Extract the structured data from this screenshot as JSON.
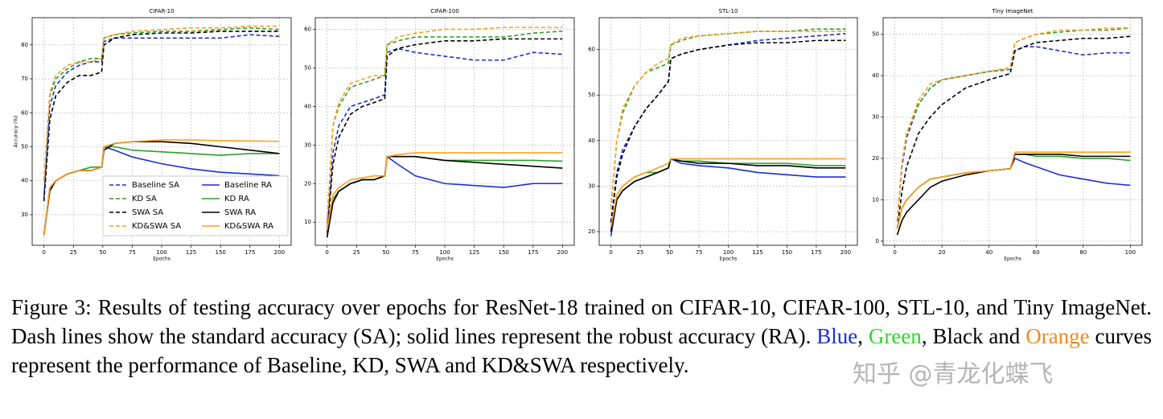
{
  "chart_data": [
    {
      "type": "line",
      "title": "CIFAR-10",
      "xlabel": "Epochs",
      "ylabel": "Accuracy (%)",
      "x": [
        0,
        5,
        10,
        20,
        30,
        40,
        49,
        51,
        60,
        75,
        100,
        125,
        150,
        175,
        200
      ],
      "xlim": [
        -10,
        210
      ],
      "xticks": [
        0,
        25,
        50,
        75,
        100,
        125,
        150,
        175,
        200
      ],
      "ylim": [
        21,
        88
      ],
      "yticks": [
        30,
        40,
        50,
        60,
        70,
        80
      ],
      "grid": true,
      "legend": "lower right",
      "series": [
        {
          "name": "Baseline SA",
          "color": "#1a2fd0",
          "linestyle": "dashed",
          "values": [
            35,
            62,
            68,
            72,
            74,
            75,
            75,
            81,
            82,
            82,
            82,
            82,
            82,
            83,
            82.5
          ]
        },
        {
          "name": "KD SA",
          "color": "#2ca02c",
          "linestyle": "dashed",
          "values": [
            40,
            65,
            70,
            73,
            75,
            76,
            76,
            82,
            83,
            83.5,
            84,
            84,
            84.5,
            85,
            84.5
          ]
        },
        {
          "name": "SWA SA",
          "color": "#000000",
          "linestyle": "dashed",
          "values": [
            34,
            58,
            65,
            69,
            71,
            71,
            72,
            80,
            82,
            83,
            83.5,
            83.5,
            84,
            84,
            84
          ]
        },
        {
          "name": "KD&SWA SA",
          "color": "#ff9f1a",
          "linestyle": "dashed",
          "values": [
            40,
            66,
            71,
            74,
            75,
            75,
            76,
            82,
            83,
            84,
            84.5,
            85,
            85,
            85.5,
            85.5
          ]
        },
        {
          "name": "Baseline RA",
          "color": "#1a2fd0",
          "linestyle": "solid",
          "values": [
            24,
            38,
            40,
            42,
            43,
            43,
            44,
            50,
            49,
            47,
            45,
            43.5,
            42.5,
            42,
            41.5
          ]
        },
        {
          "name": "KD RA",
          "color": "#2ca02c",
          "linestyle": "solid",
          "values": [
            24,
            38,
            40,
            42,
            43,
            44,
            44,
            50,
            50,
            49,
            48.5,
            48,
            47.5,
            48,
            48
          ]
        },
        {
          "name": "SWA RA",
          "color": "#000000",
          "linestyle": "solid",
          "values": [
            24,
            37,
            40,
            42,
            43,
            43,
            44,
            49,
            51,
            51.5,
            51.5,
            51,
            50,
            49,
            48
          ]
        },
        {
          "name": "KD&SWA RA",
          "color": "#ff9f1a",
          "linestyle": "solid",
          "values": [
            24,
            38,
            40,
            42,
            43,
            43,
            44,
            50,
            51,
            51.5,
            52,
            52,
            51.8,
            51.7,
            51.6
          ]
        }
      ]
    },
    {
      "type": "line",
      "title": "CIFAR-100",
      "xlabel": "Epochs",
      "x": [
        0,
        5,
        10,
        20,
        30,
        40,
        49,
        51,
        60,
        75,
        100,
        125,
        150,
        175,
        200
      ],
      "xlim": [
        -10,
        210
      ],
      "xticks": [
        0,
        25,
        50,
        75,
        100,
        125,
        150,
        175,
        200
      ],
      "ylim": [
        4,
        63
      ],
      "yticks": [
        10,
        20,
        30,
        40,
        50,
        60
      ],
      "grid": true,
      "series": [
        {
          "name": "Baseline SA",
          "color": "#1a2fd0",
          "linestyle": "dashed",
          "values": [
            8,
            28,
            35,
            40,
            41,
            42,
            43,
            54,
            55,
            54,
            53,
            52,
            52,
            54,
            53.5
          ]
        },
        {
          "name": "KD SA",
          "color": "#2ca02c",
          "linestyle": "dashed",
          "values": [
            10,
            35,
            40,
            45,
            46,
            47,
            48,
            56,
            57,
            58,
            58,
            58,
            58,
            59,
            59.5
          ]
        },
        {
          "name": "SWA SA",
          "color": "#000000",
          "linestyle": "dashed",
          "values": [
            7,
            25,
            32,
            38,
            40,
            41,
            42,
            53,
            55,
            56,
            57,
            57,
            57.5,
            57.5,
            57.5
          ]
        },
        {
          "name": "KD&SWA SA",
          "color": "#ff9f1a",
          "linestyle": "dashed",
          "values": [
            10,
            35,
            41,
            46,
            47,
            48,
            48,
            56,
            58,
            59,
            60,
            60,
            60.5,
            60.5,
            60.5
          ]
        },
        {
          "name": "Baseline RA",
          "color": "#1a2fd0",
          "linestyle": "solid",
          "values": [
            7,
            16,
            18,
            20,
            21,
            21,
            22,
            27,
            25,
            22,
            20,
            19.5,
            19,
            20,
            20
          ]
        },
        {
          "name": "KD RA",
          "color": "#2ca02c",
          "linestyle": "solid",
          "values": [
            7,
            16,
            18,
            20,
            21,
            21,
            22,
            27,
            27,
            27,
            26,
            26,
            26,
            26,
            25.8
          ]
        },
        {
          "name": "SWA RA",
          "color": "#000000",
          "linestyle": "solid",
          "values": [
            6,
            15,
            18,
            20,
            21,
            21,
            22,
            27,
            27,
            27,
            26,
            25.5,
            25,
            24.5,
            24
          ]
        },
        {
          "name": "KD&SWA RA",
          "color": "#ff9f1a",
          "linestyle": "solid",
          "values": [
            8,
            17,
            19,
            21,
            21.5,
            22,
            22,
            27,
            27.5,
            28,
            28,
            28,
            28,
            28,
            28
          ]
        }
      ]
    },
    {
      "type": "line",
      "title": "STL-10",
      "xlabel": "Epochs",
      "x": [
        0,
        5,
        10,
        20,
        30,
        40,
        49,
        51,
        60,
        75,
        100,
        125,
        150,
        175,
        200
      ],
      "xlim": [
        -10,
        210
      ],
      "xticks": [
        0,
        25,
        50,
        75,
        100,
        125,
        150,
        175,
        200
      ],
      "ylim": [
        17,
        67
      ],
      "yticks": [
        20,
        30,
        40,
        50,
        60
      ],
      "grid": true,
      "series": [
        {
          "name": "Baseline SA",
          "color": "#1a2fd0",
          "linestyle": "dashed",
          "values": [
            22,
            33,
            38,
            43,
            47,
            50,
            53,
            58,
            59,
            60,
            61,
            62,
            62.5,
            63,
            63.5
          ]
        },
        {
          "name": "KD SA",
          "color": "#2ca02c",
          "linestyle": "dashed",
          "values": [
            25,
            40,
            46,
            52,
            55,
            56,
            57,
            61,
            62,
            63,
            63.5,
            64,
            64,
            64.5,
            64.5
          ]
        },
        {
          "name": "SWA SA",
          "color": "#000000",
          "linestyle": "dashed",
          "values": [
            22,
            32,
            37,
            43,
            47,
            50,
            53,
            58,
            59,
            60,
            61,
            61.5,
            61.5,
            62,
            62
          ]
        },
        {
          "name": "KD&SWA SA",
          "color": "#ff9f1a",
          "linestyle": "dashed",
          "values": [
            25,
            40,
            47,
            52,
            55,
            57,
            58,
            61,
            62.5,
            63,
            63.5,
            64,
            64,
            64,
            64
          ]
        },
        {
          "name": "Baseline RA",
          "color": "#1a2fd0",
          "linestyle": "solid",
          "values": [
            19,
            27,
            29,
            31,
            32,
            33,
            34,
            36,
            35,
            34.5,
            34,
            33,
            32.5,
            32,
            32
          ]
        },
        {
          "name": "KD RA",
          "color": "#2ca02c",
          "linestyle": "solid",
          "values": [
            20,
            28,
            30,
            32,
            33,
            33,
            34,
            36,
            35.5,
            35.5,
            35,
            35,
            35,
            34.5,
            34.5
          ]
        },
        {
          "name": "SWA RA",
          "color": "#000000",
          "linestyle": "solid",
          "values": [
            20,
            27,
            29,
            31,
            32,
            33,
            34,
            36,
            35.5,
            35,
            35,
            34.5,
            34.5,
            34,
            34
          ]
        },
        {
          "name": "KD&SWA RA",
          "color": "#ff9f1a",
          "linestyle": "solid",
          "values": [
            21,
            28,
            30,
            32,
            33,
            34,
            35,
            36,
            36,
            36,
            36,
            36,
            36,
            36,
            36
          ]
        }
      ]
    },
    {
      "type": "line",
      "title": "Tiny ImageNet",
      "xlabel": "Epochs",
      "x": [
        1,
        3,
        5,
        10,
        15,
        20,
        30,
        40,
        49,
        51,
        55,
        60,
        70,
        80,
        90,
        100
      ],
      "xlim": [
        -5,
        105
      ],
      "xticks": [
        0,
        20,
        40,
        60,
        80,
        100
      ],
      "ylim": [
        -1,
        54
      ],
      "yticks": [
        0,
        10,
        20,
        30,
        40,
        50
      ],
      "grid": true,
      "series": [
        {
          "name": "Baseline SA",
          "color": "#1a2fd0",
          "linestyle": "dashed",
          "values": [
            5,
            18,
            25,
            33,
            37,
            39,
            40,
            41,
            41.5,
            46,
            47,
            47,
            46,
            45,
            45.5,
            45.5
          ]
        },
        {
          "name": "KD SA",
          "color": "#2ca02c",
          "linestyle": "dashed",
          "values": [
            5,
            19,
            26,
            33,
            37,
            39,
            40,
            41,
            41.5,
            48,
            49,
            50,
            50.5,
            51,
            51,
            51.5
          ]
        },
        {
          "name": "SWA SA",
          "color": "#000000",
          "linestyle": "dashed",
          "values": [
            3,
            12,
            18,
            26,
            30,
            33,
            37,
            39,
            40.5,
            46,
            47,
            48,
            48.5,
            49,
            49,
            49.5
          ]
        },
        {
          "name": "KD&SWA SA",
          "color": "#ff9f1a",
          "linestyle": "dashed",
          "values": [
            5,
            19,
            26,
            34,
            38,
            39,
            40,
            41,
            42,
            48,
            49,
            50,
            51,
            51,
            51.5,
            51.5
          ]
        },
        {
          "name": "Baseline RA",
          "color": "#1a2fd0",
          "linestyle": "solid",
          "values": [
            3,
            8,
            10,
            13,
            15,
            15.5,
            16.5,
            17,
            17.5,
            20,
            19,
            18,
            16,
            15,
            14,
            13.5
          ]
        },
        {
          "name": "KD RA",
          "color": "#2ca02c",
          "linestyle": "solid",
          "values": [
            3,
            8,
            10,
            13,
            15,
            15.5,
            16.5,
            17,
            17.5,
            21,
            21,
            20.5,
            20.5,
            20,
            20,
            19.5
          ]
        },
        {
          "name": "SWA RA",
          "color": "#000000",
          "linestyle": "solid",
          "values": [
            1.5,
            5,
            7,
            10,
            13,
            14.5,
            16,
            17,
            17.5,
            21,
            21,
            21,
            21,
            20.5,
            20.5,
            20.5
          ]
        },
        {
          "name": "KD&SWA RA",
          "color": "#ff9f1a",
          "linestyle": "solid",
          "values": [
            3,
            8,
            10,
            13,
            15,
            15.5,
            16.5,
            17,
            17.5,
            21.5,
            21.5,
            21.5,
            21.5,
            21.5,
            21.5,
            21.5
          ]
        }
      ]
    }
  ],
  "caption": {
    "segments": [
      {
        "text": "Figure 3: Results of testing accuracy over epochs for ResNet-18 trained on CIFAR-10, CIFAR-100, STL-10, and Tiny ImageNet. Dash lines show the standard accuracy (SA); solid lines represent the robust accuracy (RA). "
      },
      {
        "text": "Blue",
        "color": "#1a2fd0"
      },
      {
        "text": ", "
      },
      {
        "text": "Green",
        "color": "#22dd22"
      },
      {
        "text": ", Black and "
      },
      {
        "text": "Orange",
        "color": "#f08a1c"
      },
      {
        "text": " curves represent the performance of Baseline, KD, SWA and KD&SWA respectively."
      }
    ]
  },
  "watermark": "知乎 @青龙化蝶飞"
}
